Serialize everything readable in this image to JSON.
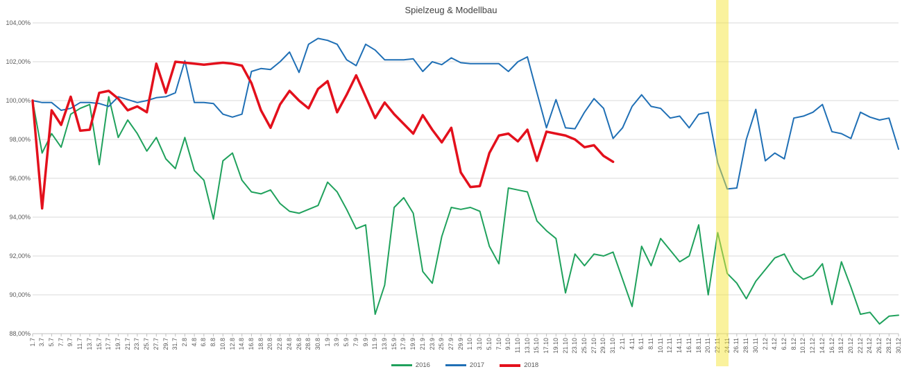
{
  "title": "Spielzeug & Modellbau",
  "colors": {
    "gridline": "#d9d9d9",
    "axis_line": "#bfbfbf",
    "tick": "#bfbfbf",
    "axis_label": "#595959",
    "title_text": "#3f3f3f",
    "highlight_band": "rgba(245,230,60,0.5)",
    "series_2016": "#1fa15c",
    "series_2017": "#1f6fb5",
    "series_2018": "#e3101c"
  },
  "y_axis": {
    "labels": [
      "104,00%",
      "102,00%",
      "100,00%",
      "98,00%",
      "96,00%",
      "94,00%",
      "92,00%",
      "90,00%",
      "88,00%"
    ],
    "min": 88,
    "max": 104,
    "step": 2
  },
  "highlight": {
    "at_category": "24.11",
    "category_index": 73
  },
  "chart_data": {
    "type": "line",
    "title": "Spielzeug & Modellbau",
    "xlabel": "",
    "ylabel": "",
    "ylim": [
      88,
      104
    ],
    "y_tick_format": "0,00%",
    "grid": true,
    "legend_position": "bottom",
    "annotations": [
      {
        "type": "vertical-band",
        "at_category": "24.11",
        "note": "yellow highlight over 24.11"
      }
    ],
    "categories": [
      "1.7",
      "3.7",
      "5.7",
      "7.7",
      "9.7",
      "11.7",
      "13.7",
      "15.7",
      "17.7",
      "19.7",
      "21.7",
      "23.7",
      "25.7",
      "27.7",
      "29.7",
      "31.7",
      "2.8",
      "4.8",
      "6.8",
      "8.8",
      "10.8",
      "12.8",
      "14.8",
      "16.8",
      "18.8",
      "20.8",
      "22.8",
      "24.8",
      "26.8",
      "28.8",
      "30.8",
      "1.9",
      "3.9",
      "5.9",
      "7.9",
      "9.9",
      "11.9",
      "13.9",
      "15.9",
      "17.9",
      "19.9",
      "21.9",
      "23.9",
      "25.9",
      "27.9",
      "29.9",
      "1.10",
      "3.10",
      "5.10",
      "7.10",
      "9.10",
      "11.10",
      "13.10",
      "15.10",
      "17.10",
      "19.10",
      "21.10",
      "23.10",
      "25.10",
      "27.10",
      "29.10",
      "31.10",
      "2.11",
      "4.11",
      "6.11",
      "8.11",
      "10.11",
      "12.11",
      "14.11",
      "16.11",
      "18.11",
      "20.11",
      "22.11",
      "24.11",
      "26.11",
      "28.11",
      "30.11",
      "2.12",
      "4.12",
      "6.12",
      "8.12",
      "10.12",
      "12.12",
      "14.12",
      "16.12",
      "18.12",
      "20.12",
      "22.12",
      "24.12",
      "26.12",
      "28.12",
      "30.12"
    ],
    "series": [
      {
        "name": "2016",
        "color": "#1fa15c",
        "line_width": 2,
        "values": [
          100.0,
          97.3,
          98.3,
          97.6,
          99.3,
          99.6,
          99.8,
          96.7,
          100.2,
          98.1,
          99.0,
          98.3,
          97.4,
          98.1,
          97.0,
          96.5,
          98.1,
          96.4,
          95.9,
          93.9,
          96.9,
          97.3,
          95.9,
          95.3,
          95.2,
          95.4,
          94.7,
          94.3,
          94.2,
          94.4,
          94.6,
          95.8,
          95.3,
          94.4,
          93.4,
          93.6,
          89.0,
          90.5,
          94.5,
          95.0,
          94.2,
          91.2,
          90.6,
          93.0,
          94.5,
          94.4,
          94.5,
          94.3,
          92.5,
          91.6,
          95.5,
          95.4,
          95.3,
          93.8,
          93.3,
          92.9,
          90.1,
          92.1,
          91.5,
          92.1,
          92.0,
          92.2,
          90.8,
          89.4,
          92.5,
          91.5,
          92.9,
          92.3,
          91.7,
          92.0,
          93.6,
          90.0,
          93.2,
          91.1,
          90.6,
          89.8,
          90.7,
          91.3,
          91.9,
          92.1,
          91.2,
          90.8,
          91.0,
          91.6,
          89.5,
          91.7,
          90.4,
          89.0,
          89.1,
          88.5,
          88.9,
          88.95
        ]
      },
      {
        "name": "2017",
        "color": "#1f6fb5",
        "line_width": 2,
        "values": [
          100.0,
          99.9,
          99.9,
          99.5,
          99.6,
          99.9,
          99.9,
          99.85,
          99.7,
          100.2,
          100.05,
          99.9,
          100.0,
          100.15,
          100.2,
          100.4,
          102.05,
          99.9,
          99.9,
          99.85,
          99.3,
          99.15,
          99.3,
          101.5,
          101.65,
          101.6,
          102.0,
          102.5,
          101.45,
          102.9,
          103.2,
          103.1,
          102.9,
          102.1,
          101.8,
          102.9,
          102.6,
          102.1,
          102.1,
          102.1,
          102.15,
          101.5,
          102.0,
          101.85,
          102.2,
          101.95,
          101.9,
          101.9,
          101.9,
          101.9,
          101.5,
          102.0,
          102.25,
          100.4,
          98.6,
          100.05,
          98.6,
          98.55,
          99.4,
          100.1,
          99.6,
          98.05,
          98.6,
          99.7,
          100.3,
          99.7,
          99.6,
          99.1,
          99.2,
          98.6,
          99.3,
          99.4,
          96.8,
          95.45,
          95.5,
          98.0,
          99.55,
          96.9,
          97.3,
          97.0,
          99.1,
          99.2,
          99.4,
          99.8,
          98.4,
          98.3,
          98.05,
          99.4,
          99.15,
          99.0,
          99.1,
          97.5
        ]
      },
      {
        "name": "2018",
        "color": "#e3101c",
        "line_width": 3.5,
        "values": [
          100.0,
          94.45,
          99.5,
          98.75,
          100.2,
          98.45,
          98.5,
          100.4,
          100.5,
          100.1,
          99.5,
          99.7,
          99.4,
          101.9,
          100.4,
          102.0,
          101.95,
          101.9,
          101.85,
          101.9,
          101.95,
          101.9,
          101.8,
          100.9,
          99.5,
          98.6,
          99.8,
          100.5,
          100.0,
          99.6,
          100.6,
          101.0,
          99.4,
          100.3,
          101.3,
          100.2,
          99.1,
          99.9,
          99.3,
          98.8,
          98.3,
          99.25,
          98.5,
          97.85,
          98.6,
          96.3,
          95.55,
          95.6,
          97.3,
          98.2,
          98.3,
          97.9,
          98.5,
          96.9,
          98.4,
          98.3,
          98.2,
          98.0,
          97.6,
          97.7,
          97.15,
          96.85,
          null,
          null,
          null,
          null,
          null,
          null,
          null,
          null,
          null,
          null,
          null,
          null,
          null,
          null,
          null,
          null,
          null,
          null,
          null,
          null,
          null,
          null,
          null,
          null,
          null,
          null,
          null,
          null,
          null,
          null
        ]
      }
    ]
  },
  "legend": {
    "items": [
      {
        "label": "2016"
      },
      {
        "label": "2017"
      },
      {
        "label": "2018"
      }
    ]
  }
}
